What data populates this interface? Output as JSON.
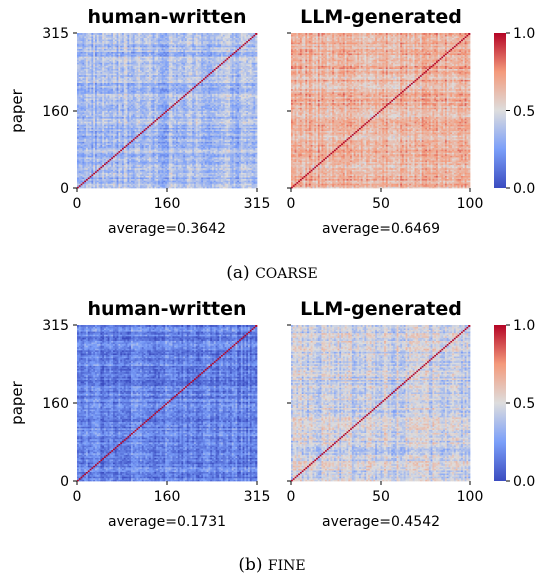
{
  "chart_data": [
    {
      "type": "heatmap",
      "group": "coarse",
      "title": "human-written",
      "ylabel": "paper",
      "x_ticks": [
        "0",
        "160",
        "315"
      ],
      "y_ticks": [
        "315",
        "160",
        "0"
      ],
      "size": 316,
      "cmap": "coolwarm",
      "clim": [
        0,
        1
      ],
      "diagonal_value": 1.0,
      "average_label": "average=0.3642",
      "average": 0.3642
    },
    {
      "type": "heatmap",
      "group": "coarse",
      "title": "LLM-generated",
      "x_ticks": [
        "0",
        "50",
        "100"
      ],
      "size": 101,
      "cmap": "coolwarm",
      "clim": [
        0,
        1
      ],
      "diagonal_value": 1.0,
      "average_label": "average=0.6469",
      "average": 0.6469
    },
    {
      "type": "heatmap",
      "group": "fine",
      "title": "human-written",
      "ylabel": "paper",
      "x_ticks": [
        "0",
        "160",
        "315"
      ],
      "y_ticks": [
        "315",
        "160",
        "0"
      ],
      "size": 316,
      "cmap": "coolwarm",
      "clim": [
        0,
        1
      ],
      "diagonal_value": 1.0,
      "average_label": "average=0.1731",
      "average": 0.1731
    },
    {
      "type": "heatmap",
      "group": "fine",
      "title": "LLM-generated",
      "x_ticks": [
        "0",
        "50",
        "100"
      ],
      "size": 101,
      "cmap": "coolwarm",
      "clim": [
        0,
        1
      ],
      "diagonal_value": 1.0,
      "average_label": "average=0.4542",
      "average": 0.4542
    }
  ],
  "colorbar": {
    "ticks": [
      "1.0",
      "0.5",
      "0.0"
    ],
    "colors": {
      "low": "#3b4cc0",
      "mid": "#dddddd",
      "high": "#b40426"
    }
  },
  "captions": {
    "a_prefix": "(a) ",
    "a_label": "COARSE",
    "b_prefix": "(b) ",
    "b_label": "FINE"
  }
}
